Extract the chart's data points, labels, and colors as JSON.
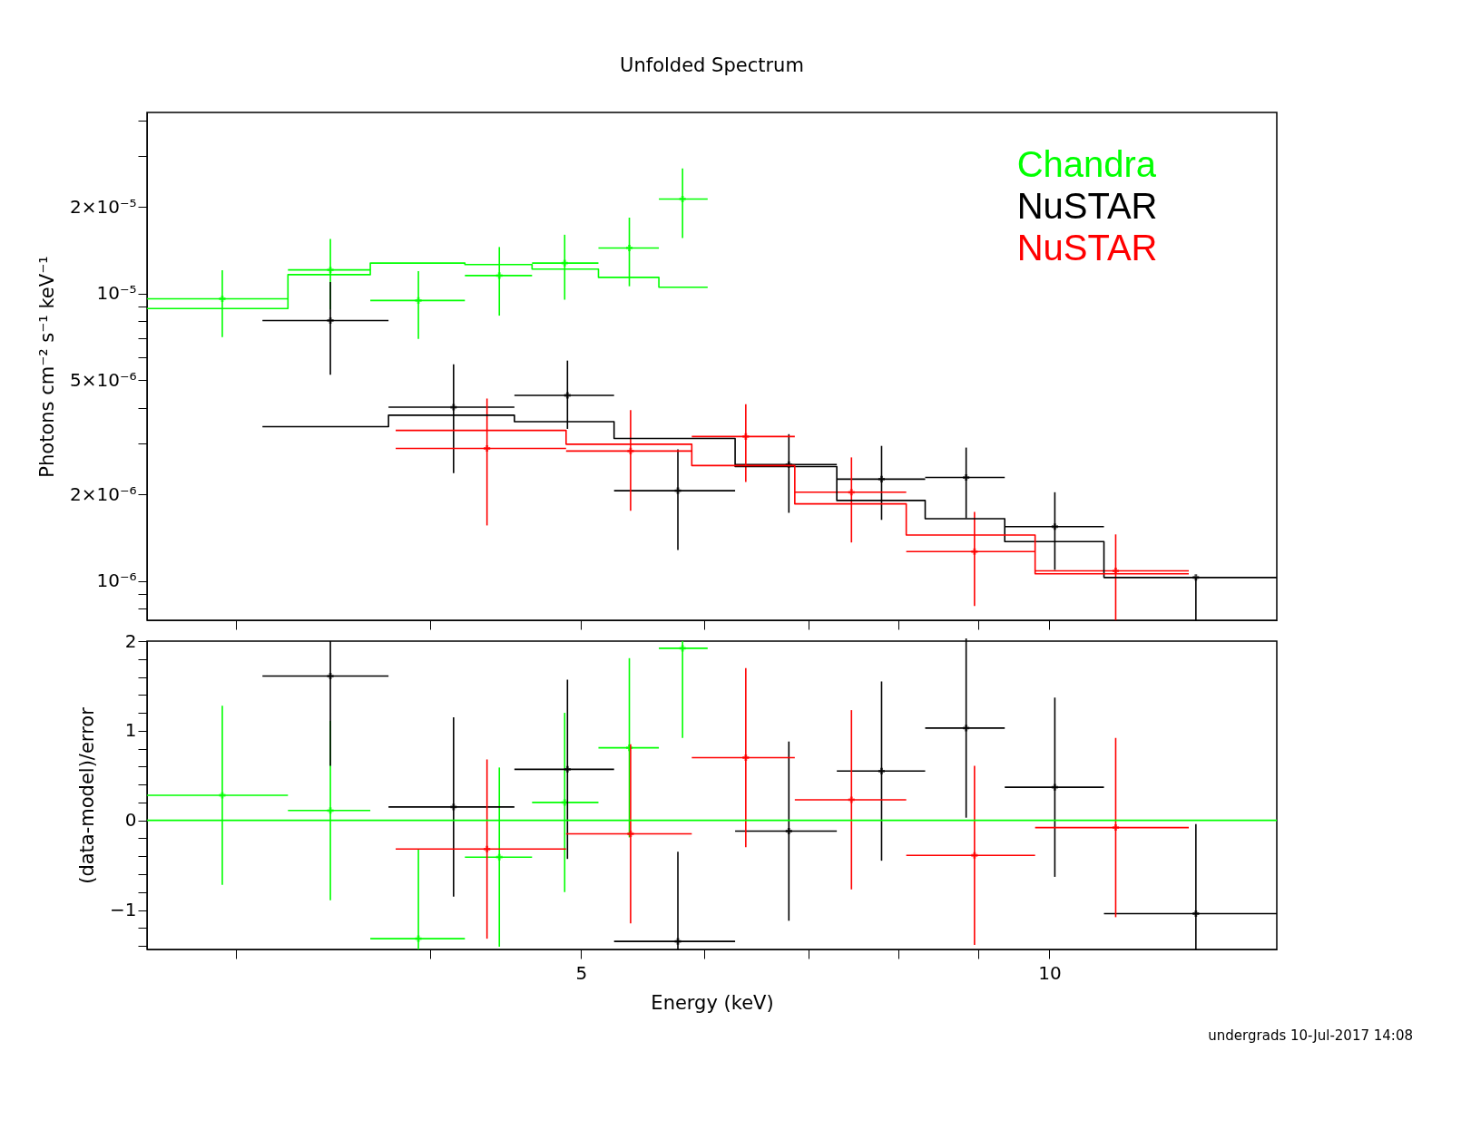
{
  "chart_data": [
    {
      "type": "scatter",
      "title": "Unfolded Spectrum",
      "ylabel": "Photons cm⁻² s⁻¹ keV⁻¹",
      "log": "xy",
      "xlim": [
        2.63,
        14.0
      ],
      "ylim": [
        7.3e-07,
        4.26e-05
      ],
      "xticks": [
        {
          "value": 3,
          "label": null
        },
        {
          "value": 4,
          "label": null
        },
        {
          "value": 5,
          "label": null
        },
        {
          "value": 6,
          "label": null
        },
        {
          "value": 7,
          "label": null
        },
        {
          "value": 8,
          "label": null
        },
        {
          "value": 9,
          "label": null
        },
        {
          "value": 10,
          "label": null
        }
      ],
      "yticks": [
        {
          "value": 8e-07,
          "label": null
        },
        {
          "value": 9e-07,
          "label": null
        },
        {
          "value": 1e-06,
          "label": "10⁻⁶"
        },
        {
          "value": 2e-06,
          "label": "2×10⁻⁶"
        },
        {
          "value": 3e-06,
          "label": null
        },
        {
          "value": 4e-06,
          "label": null
        },
        {
          "value": 5e-06,
          "label": "5×10⁻⁶"
        },
        {
          "value": 6e-06,
          "label": null
        },
        {
          "value": 7e-06,
          "label": null
        },
        {
          "value": 8e-06,
          "label": null
        },
        {
          "value": 9e-06,
          "label": null
        },
        {
          "value": 1e-05,
          "label": "10⁻⁵"
        },
        {
          "value": 2e-05,
          "label": "2×10⁻⁵"
        },
        {
          "value": 3e-05,
          "label": null
        },
        {
          "value": 4e-05,
          "label": null
        }
      ],
      "tick_labels": "y",
      "grid": false,
      "series": [
        {
          "name": "Chandra",
          "color": "#00ff00",
          "type": "scatter",
          "marker": "cross",
          "x": [
            2.94,
            3.45,
            3.93,
            4.43,
            4.88,
            5.37,
            5.81
          ],
          "values": [
            9.58e-06,
            1.207e-05,
            9.45e-06,
            1.154e-05,
            1.275e-05,
            1.439e-05,
            2.13e-05
          ],
          "errors": [
            [
              7.05e-06,
              1.204e-05
            ],
            [
              8.79e-06,
              1.546e-05
            ],
            [
              6.95e-06,
              1.195e-05
            ],
            [
              8.37e-06,
              1.45e-05
            ],
            [
              9.51e-06,
              1.6e-05
            ],
            [
              1.059e-05,
              1.835e-05
            ],
            [
              1.557e-05,
              2.72e-05
            ]
          ],
          "xerrors": [
            [
              2.63,
              3.24
            ],
            [
              3.24,
              3.66
            ],
            [
              3.66,
              4.21
            ],
            [
              4.21,
              4.65
            ],
            [
              4.65,
              5.13
            ],
            [
              5.13,
              5.61
            ],
            [
              5.61,
              6.03
            ]
          ]
        },
        {
          "name": "NuSTAR",
          "color": "#000000",
          "type": "scatter",
          "marker": "cross",
          "x": [
            3.45,
            4.14,
            4.9,
            5.77,
            6.8,
            7.8,
            8.84,
            10.08,
            12.42
          ],
          "values": [
            8.05e-06,
            4.02e-06,
            4.42e-06,
            2.06e-06,
            2.54e-06,
            2.26e-06,
            2.29e-06,
            1.545e-06,
            1.029e-06
          ],
          "errors": [
            [
              5.21e-06,
              1.095e-05
            ],
            [
              2.37e-06,
              5.67e-06
            ],
            [
              3.38e-06,
              5.84e-06
            ],
            [
              1.281e-06,
              2.87e-06
            ],
            [
              1.726e-06,
              3.24e-06
            ],
            [
              1.631e-06,
              2.95e-06
            ],
            [
              1.654e-06,
              2.91e-06
            ],
            [
              1.093e-06,
              2.035e-06
            ],
            [
              7.3e-07,
              1.029e-06
            ]
          ],
          "xerrors": [
            [
              3.12,
              3.76
            ],
            [
              3.76,
              4.53
            ],
            [
              4.53,
              5.25
            ],
            [
              5.25,
              6.28
            ],
            [
              6.28,
              7.3
            ],
            [
              7.3,
              8.32
            ],
            [
              8.32,
              9.36
            ],
            [
              9.36,
              10.84
            ],
            [
              10.84,
              14.0
            ]
          ]
        },
        {
          "name": "NuSTAR",
          "color": "#ff0000",
          "type": "scatter",
          "marker": "cross",
          "x": [
            4.35,
            5.38,
            6.38,
            7.46,
            8.95,
            11.03
          ],
          "values": [
            2.89e-06,
            2.83e-06,
            3.18e-06,
            2.035e-06,
            1.265e-06,
            1.084e-06
          ],
          "errors": [
            [
              1.56e-06,
              4.31e-06
            ],
            [
              1.754e-06,
              3.93e-06
            ],
            [
              2.21e-06,
              4.12e-06
            ],
            [
              1.361e-06,
              2.69e-06
            ],
            [
              8.18e-07,
              1.739e-06
            ],
            [
              7.3e-07,
              1.452e-06
            ]
          ],
          "xerrors": [
            [
              3.8,
              4.89
            ],
            [
              4.89,
              5.89
            ],
            [
              5.89,
              6.86
            ],
            [
              6.86,
              8.09
            ],
            [
              8.09,
              9.79
            ],
            [
              9.79,
              12.29
            ]
          ]
        },
        {
          "color": "#00ff00",
          "type": "step",
          "x": [
            2.63,
            3.24,
            3.66,
            4.21,
            4.65,
            5.13,
            5.61,
            6.03
          ],
          "values": [
            8.86e-06,
            1.162e-05,
            1.275e-05,
            1.26e-05,
            1.215e-05,
            1.137e-05,
            1.051e-05,
            1.051e-05
          ]
        },
        {
          "color": "#000000",
          "type": "step",
          "x": [
            3.12,
            3.76,
            4.53,
            5.25,
            6.28,
            7.3,
            8.32,
            9.36,
            10.84,
            14.0
          ],
          "values": [
            3.44e-06,
            3.77e-06,
            3.58e-06,
            3.13e-06,
            2.5e-06,
            1.905e-06,
            1.646e-06,
            1.37e-06,
            1.029e-06,
            1.029e-06
          ]
        },
        {
          "color": "#ff0000",
          "type": "step",
          "x": [
            3.8,
            4.89,
            5.89,
            6.86,
            8.09,
            9.79,
            12.29
          ],
          "values": [
            3.34e-06,
            2.99e-06,
            2.52e-06,
            1.854e-06,
            1.444e-06,
            1.059e-06,
            1.059e-06
          ]
        }
      ]
    },
    {
      "type": "scatter",
      "xlabel": "Energy (keV)",
      "ylabel": "(data-model)/error",
      "log": "x",
      "xlim": [
        2.63,
        14.0
      ],
      "ylim": [
        -1.44,
        2
      ],
      "xticks": [
        {
          "value": 3,
          "label": null
        },
        {
          "value": 4,
          "label": null
        },
        {
          "value": 5,
          "label": "5"
        },
        {
          "value": 6,
          "label": null
        },
        {
          "value": 7,
          "label": null
        },
        {
          "value": 8,
          "label": null
        },
        {
          "value": 9,
          "label": null
        },
        {
          "value": 10,
          "label": "10"
        }
      ],
      "yticks": [
        {
          "value": -1.4,
          "label": null
        },
        {
          "value": -1.2,
          "label": null
        },
        {
          "value": -1,
          "label": "−1"
        },
        {
          "value": -0.8,
          "label": null
        },
        {
          "value": -0.6,
          "label": null
        },
        {
          "value": -0.4,
          "label": null
        },
        {
          "value": -0.2,
          "label": null
        },
        {
          "value": 0,
          "label": "0"
        },
        {
          "value": 0.2,
          "label": null
        },
        {
          "value": 0.4,
          "label": null
        },
        {
          "value": 0.6,
          "label": null
        },
        {
          "value": 0.8,
          "label": null
        },
        {
          "value": 1,
          "label": "1"
        },
        {
          "value": 1.2,
          "label": null
        },
        {
          "value": 1.4,
          "label": null
        },
        {
          "value": 1.6,
          "label": null
        },
        {
          "value": 1.8,
          "label": null
        },
        {
          "value": 2,
          "label": "2"
        }
      ],
      "grid": false,
      "ref_lines": [
        {
          "axis": "y",
          "value": 0,
          "color": "#00ff00"
        }
      ],
      "annotations": [
        "undergrads 10-Jul-2017 14:08"
      ],
      "series": [
        {
          "color": "#00ff00",
          "marker": "cross",
          "x": [
            2.94,
            3.45,
            3.93,
            4.43,
            4.88,
            5.37,
            5.81
          ],
          "values": [
            0.28,
            0.11,
            -1.32,
            -0.41,
            0.2,
            0.81,
            1.92
          ],
          "errors": [
            1,
            1,
            [
              -1.44,
              -0.32
            ],
            1,
            1,
            1,
            [
              0.92,
              2.0
            ]
          ],
          "xerrors": [
            [
              2.63,
              3.24
            ],
            [
              3.24,
              3.66
            ],
            [
              3.66,
              4.21
            ],
            [
              4.21,
              4.65
            ],
            [
              4.65,
              5.13
            ],
            [
              5.13,
              5.61
            ],
            [
              5.61,
              6.03
            ]
          ]
        },
        {
          "color": "#000000",
          "marker": "cross",
          "x": [
            3.45,
            4.14,
            4.9,
            5.77,
            6.8,
            7.8,
            8.84,
            10.08,
            12.42
          ],
          "values": [
            1.61,
            0.15,
            0.57,
            -1.35,
            -0.12,
            0.55,
            1.03,
            0.37,
            -1.04
          ],
          "errors": [
            [
              0.61,
              2.0
            ],
            1,
            1,
            [
              -1.44,
              -0.35
            ],
            1,
            1,
            1,
            1,
            [
              -1.44,
              -0.04
            ]
          ],
          "xerrors": [
            [
              3.12,
              3.76
            ],
            [
              3.76,
              4.53
            ],
            [
              4.53,
              5.25
            ],
            [
              5.25,
              6.28
            ],
            [
              6.28,
              7.3
            ],
            [
              7.3,
              8.32
            ],
            [
              8.32,
              9.36
            ],
            [
              9.36,
              10.84
            ],
            [
              10.84,
              14.0
            ]
          ]
        },
        {
          "color": "#ff0000",
          "marker": "cross",
          "x": [
            4.35,
            5.38,
            6.38,
            7.46,
            8.95,
            11.03
          ],
          "values": [
            -0.32,
            -0.15,
            0.7,
            0.23,
            -0.39,
            -0.08
          ],
          "errors": [
            1,
            1,
            1,
            1,
            1,
            1
          ],
          "xerrors": [
            [
              3.8,
              4.89
            ],
            [
              4.89,
              5.89
            ],
            [
              5.89,
              6.86
            ],
            [
              6.86,
              8.09
            ],
            [
              8.09,
              9.79
            ],
            [
              9.79,
              12.29
            ]
          ]
        }
      ]
    }
  ]
}
